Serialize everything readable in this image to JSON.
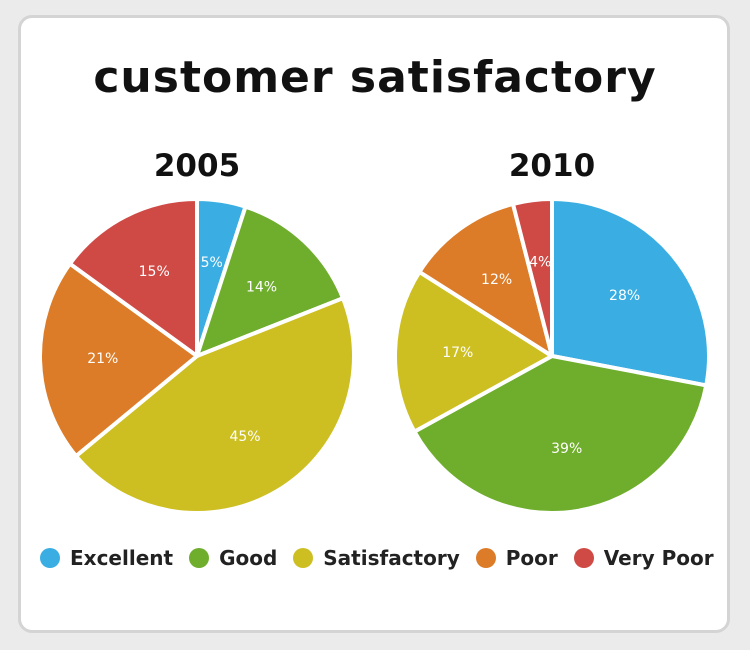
{
  "chart_data": {
    "type": "pie",
    "title": "customer satisfactory",
    "categories": [
      "Excellent",
      "Good",
      "Satisfactory",
      "Poor",
      "Very Poor"
    ],
    "colors": [
      "#3aaee2",
      "#6fad2d",
      "#cdbf22",
      "#dc7c28",
      "#cf4a45"
    ],
    "legend_position": "bottom",
    "series": [
      {
        "name": "2005",
        "values": [
          5,
          14,
          45,
          21,
          15
        ],
        "labels": [
          "5%",
          "14%",
          "45%",
          "21%",
          "15%"
        ]
      },
      {
        "name": "2010",
        "values": [
          28,
          39,
          17,
          12,
          4
        ],
        "labels": [
          "28%",
          "39%",
          "17%",
          "12%",
          "4%"
        ]
      }
    ]
  }
}
